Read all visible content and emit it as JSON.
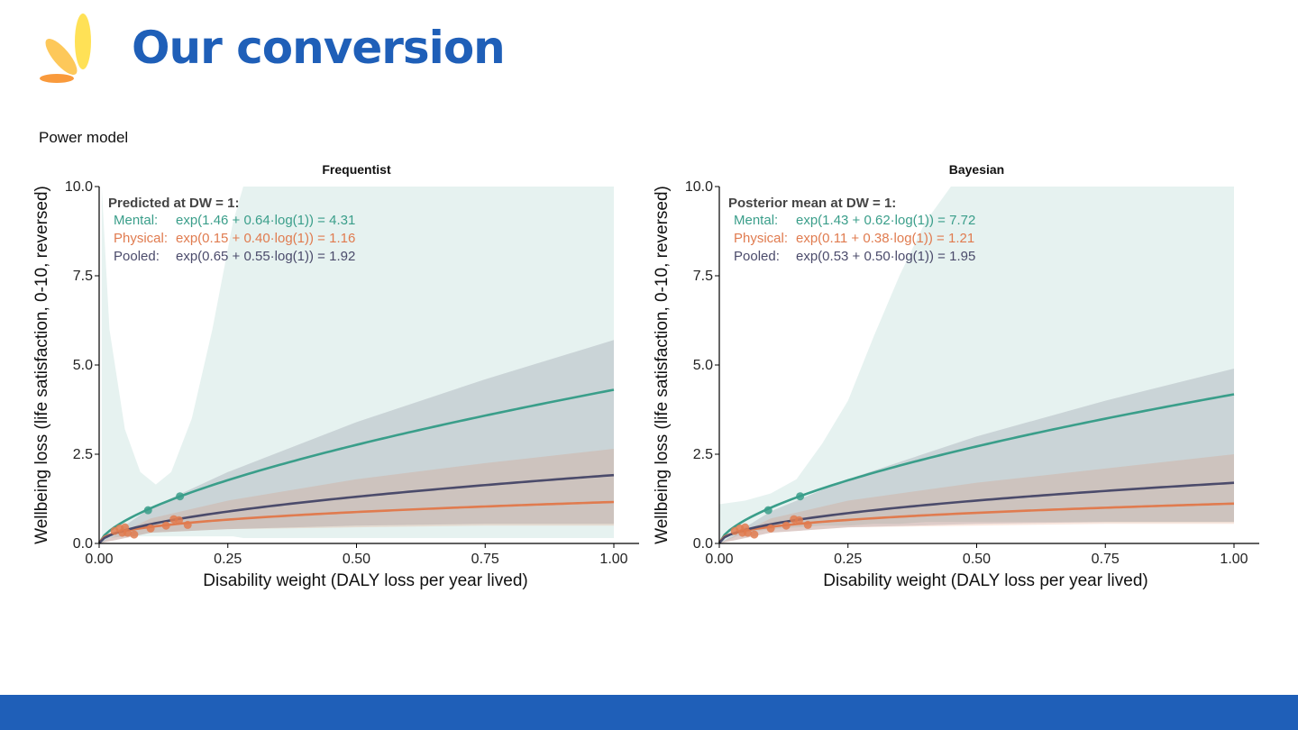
{
  "slide": {
    "title": "Our conversion",
    "subtitle": "Power model"
  },
  "colors": {
    "mental": "#3a9e8a",
    "physical": "#e07b4f",
    "pooled": "#4b4b6b",
    "title": "#1f5fb8",
    "footer": "#1f5fb8"
  },
  "chart_data": [
    {
      "type": "line",
      "title": "Frequentist",
      "xlabel": "Disability weight (DALY loss per year lived)",
      "ylabel": "Wellbeing loss (life satisfaction, 0-10, reversed)",
      "xlim": [
        0,
        1
      ],
      "ylim": [
        0,
        10
      ],
      "xticks": [
        "0.00",
        "0.25",
        "0.50",
        "0.75",
        "1.00"
      ],
      "yticks": [
        "0.0",
        "2.5",
        "5.0",
        "7.5",
        "10.0"
      ],
      "grid": false,
      "annotation_header": "Predicted at DW = 1:",
      "series": [
        {
          "name": "Mental:",
          "formula": "exp(1.46 + 0.64·log(1)) = 4.31",
          "a": 1.46,
          "b": 0.64,
          "color": "#3a9e8a",
          "band": {
            "x": [
              0.005,
              0.02,
              0.05,
              0.08,
              0.11,
              0.14,
              0.18,
              0.22,
              0.26,
              0.28,
              1
            ],
            "hi": [
              10,
              6,
              3.2,
              2.0,
              1.65,
              2.0,
              3.5,
              6,
              9,
              10,
              10
            ],
            "lo": [
              0,
              0.15,
              0.2,
              0.2,
              0.2,
              0.2,
              0.2,
              0.2,
              0.2,
              0.15,
              0.15
            ]
          },
          "points": [
            [
              0.095,
              0.93
            ],
            [
              0.157,
              1.32
            ]
          ]
        },
        {
          "name": "Physical:",
          "formula": "exp(0.15 + 0.40·log(1)) = 1.16",
          "a": 0.15,
          "b": 0.4,
          "color": "#e07b4f",
          "band": {
            "x": [
              0,
              0.1,
              0.25,
              0.5,
              0.75,
              1
            ],
            "hi": [
              0,
              0.7,
              1.2,
              1.8,
              2.25,
              2.65
            ],
            "lo": [
              0,
              0.3,
              0.4,
              0.45,
              0.5,
              0.5
            ]
          },
          "points": [
            [
              0.03,
              0.35
            ],
            [
              0.04,
              0.42
            ],
            [
              0.045,
              0.3
            ],
            [
              0.05,
              0.45
            ],
            [
              0.055,
              0.3
            ],
            [
              0.068,
              0.25
            ],
            [
              0.1,
              0.42
            ],
            [
              0.13,
              0.5
            ],
            [
              0.145,
              0.68
            ],
            [
              0.155,
              0.65
            ],
            [
              0.172,
              0.52
            ]
          ]
        },
        {
          "name": "Pooled:",
          "formula": "exp(0.65 + 0.55·log(1)) = 1.92",
          "a": 0.65,
          "b": 0.55,
          "color": "#4b4b6b",
          "band": {
            "x": [
              0,
              0.1,
              0.25,
              0.5,
              0.75,
              1
            ],
            "hi": [
              0,
              1.0,
              2.0,
              3.4,
              4.6,
              5.7
            ],
            "lo": [
              0,
              0.3,
              0.4,
              0.5,
              0.55,
              0.55
            ]
          },
          "points": []
        }
      ]
    },
    {
      "type": "line",
      "title": "Bayesian",
      "xlabel": "Disability weight (DALY loss per year lived)",
      "ylabel": "Wellbeing loss (life satisfaction, 0-10, reversed)",
      "xlim": [
        0,
        1
      ],
      "ylim": [
        0,
        10
      ],
      "xticks": [
        "0.00",
        "0.25",
        "0.50",
        "0.75",
        "1.00"
      ],
      "yticks": [
        "0.0",
        "2.5",
        "5.0",
        "7.5",
        "10.0"
      ],
      "grid": false,
      "annotation_header": "Posterior mean at DW = 1:",
      "series": [
        {
          "name": "Mental:",
          "formula": "exp(1.43 + 0.62·log(1)) = 7.72",
          "a": 1.43,
          "b": 0.62,
          "color": "#3a9e8a",
          "band": {
            "x": [
              0,
              0.05,
              0.1,
              0.15,
              0.2,
              0.25,
              0.3,
              0.35,
              0.4,
              0.45,
              1
            ],
            "hi": [
              1.1,
              1.2,
              1.4,
              1.8,
              2.8,
              4,
              5.8,
              7.5,
              9,
              10,
              10
            ],
            "lo": [
              0,
              0.3,
              0.4,
              0.45,
              0.5,
              0.5,
              0.55,
              0.55,
              0.6,
              0.6,
              0.6
            ]
          },
          "points": [
            [
              0.095,
              0.93
            ],
            [
              0.157,
              1.32
            ]
          ]
        },
        {
          "name": "Physical:",
          "formula": "exp(0.11 + 0.38·log(1)) = 1.21",
          "a": 0.11,
          "b": 0.38,
          "color": "#e07b4f",
          "band": {
            "x": [
              0,
              0.1,
              0.25,
              0.5,
              0.75,
              1
            ],
            "hi": [
              0,
              0.7,
              1.2,
              1.7,
              2.1,
              2.5
            ],
            "lo": [
              0,
              0.3,
              0.45,
              0.5,
              0.55,
              0.55
            ]
          },
          "points": [
            [
              0.03,
              0.35
            ],
            [
              0.04,
              0.42
            ],
            [
              0.045,
              0.3
            ],
            [
              0.05,
              0.45
            ],
            [
              0.055,
              0.3
            ],
            [
              0.068,
              0.25
            ],
            [
              0.1,
              0.42
            ],
            [
              0.13,
              0.5
            ],
            [
              0.145,
              0.68
            ],
            [
              0.155,
              0.65
            ],
            [
              0.172,
              0.52
            ]
          ]
        },
        {
          "name": "Pooled:",
          "formula": "exp(0.53 + 0.50·log(1)) = 1.95",
          "a": 0.53,
          "b": 0.5,
          "color": "#4b4b6b",
          "band": {
            "x": [
              0,
              0.1,
              0.25,
              0.5,
              0.75,
              1
            ],
            "hi": [
              0,
              0.9,
              1.8,
              3.0,
              4.0,
              4.9
            ],
            "lo": [
              0,
              0.3,
              0.45,
              0.55,
              0.6,
              0.6
            ]
          },
          "points": []
        }
      ]
    }
  ]
}
